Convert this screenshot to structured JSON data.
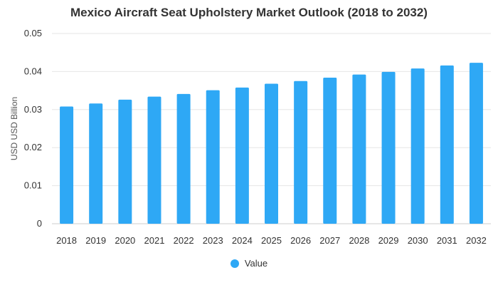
{
  "chart_data": {
    "type": "bar",
    "title": "Mexico Aircraft Seat Upholstery Market Outlook (2018 to 2032)",
    "xlabel": "",
    "ylabel": "USD USD Billion",
    "categories": [
      "2018",
      "2019",
      "2020",
      "2021",
      "2022",
      "2023",
      "2024",
      "2025",
      "2026",
      "2027",
      "2028",
      "2029",
      "2030",
      "2031",
      "2032"
    ],
    "series": [
      {
        "name": "Value",
        "color": "#2ea8f5",
        "values": [
          0.0308,
          0.0316,
          0.0326,
          0.0334,
          0.0341,
          0.0351,
          0.0358,
          0.0368,
          0.0375,
          0.0384,
          0.0392,
          0.0399,
          0.0408,
          0.0416,
          0.0423
        ]
      }
    ],
    "ylim": [
      0,
      0.05
    ],
    "yticks": [
      "0",
      "0.01",
      "0.02",
      "0.03",
      "0.04",
      "0.05"
    ],
    "grid": true,
    "legend_position": "bottom"
  }
}
